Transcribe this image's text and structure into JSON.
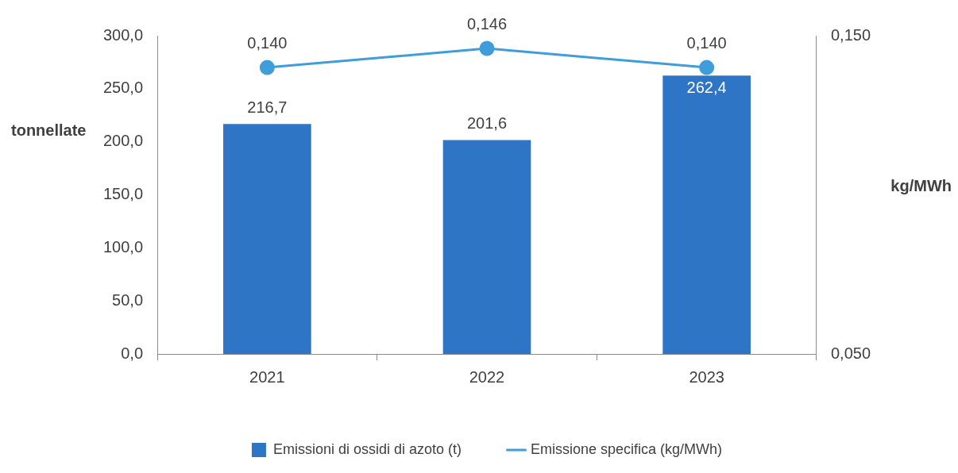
{
  "chart_data": {
    "type": "bar",
    "categories": [
      "2021",
      "2022",
      "2023"
    ],
    "series": [
      {
        "name": "Emissioni di ossidi di azoto (t)",
        "color": "#2e75c6",
        "values": [
          216.7,
          201.6,
          262.4
        ],
        "value_labels": [
          "216,7",
          "201,6",
          "262,4"
        ]
      },
      {
        "name": "Emissione specifica (kg/MWh)",
        "type": "line",
        "axis": "y2",
        "color": "#3f9ddb",
        "values": [
          0.14,
          0.146,
          0.14
        ],
        "value_labels": [
          "0,140",
          "0,146",
          "0,140"
        ]
      }
    ],
    "ylabel": "tonnellate",
    "y2label": "kg/MWh",
    "ylim": [
      0,
      300
    ],
    "yticks": [
      {
        "value": 0,
        "label": "0,0"
      },
      {
        "value": 50,
        "label": "50,0"
      },
      {
        "value": 100,
        "label": "100,0"
      },
      {
        "value": 150,
        "label": "150,0"
      },
      {
        "value": 200,
        "label": "200,0"
      },
      {
        "value": 250,
        "label": "250,0"
      },
      {
        "value": 300,
        "label": "300,0"
      }
    ],
    "y2lim": [
      0.05,
      0.15
    ],
    "y2ticks": [
      {
        "value": 0.05,
        "label": "0,050"
      },
      {
        "value": 0.15,
        "label": "0,150"
      }
    ],
    "grid": false,
    "legend": "bottom",
    "marker": "circle",
    "line_style": "solid"
  }
}
